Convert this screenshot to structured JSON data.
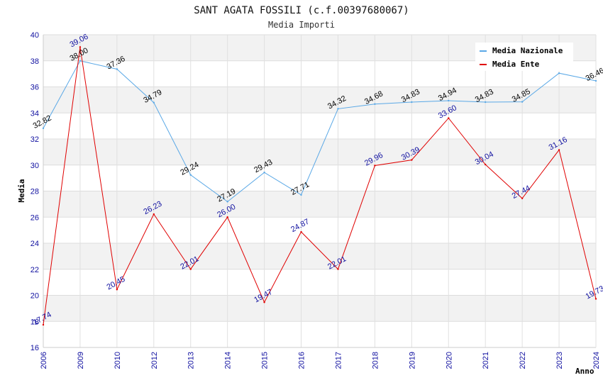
{
  "chart_data": {
    "type": "line",
    "title": "SANT AGATA FOSSILI (c.f.00397680067)",
    "subtitle": "Media Importi",
    "xlabel": "Anno",
    "ylabel": "Media",
    "ylim": [
      16,
      40
    ],
    "yticks": [
      "16",
      "18",
      "20",
      "22",
      "24",
      "26",
      "28",
      "30",
      "32",
      "34",
      "36",
      "38",
      "40"
    ],
    "categories": [
      "2006",
      "2009",
      "2010",
      "2012",
      "2013",
      "2014",
      "2015",
      "2016",
      "2017",
      "2018",
      "2019",
      "2020",
      "2021",
      "2022",
      "2023",
      "2024"
    ],
    "legend_position": "top-right",
    "series": [
      {
        "name": "Media Nazionale",
        "color": "#5aa8e6",
        "label_color": "#000000",
        "values": [
          32.82,
          38.0,
          37.36,
          34.79,
          29.24,
          27.19,
          29.43,
          27.71,
          34.32,
          34.68,
          34.83,
          34.94,
          34.83,
          34.85,
          37.05,
          36.46
        ],
        "labels": [
          "32.82",
          "38.00",
          "37.36",
          "34.79",
          "29.24",
          "27.19",
          "29.43",
          "27.71",
          "34.32",
          "34.68",
          "34.83",
          "34.94",
          "34.83",
          "34.85",
          "",
          "36.46"
        ]
      },
      {
        "name": "Media Ente",
        "color": "#e00000",
        "label_color": "#1010a0",
        "values": [
          17.74,
          39.06,
          20.45,
          26.23,
          22.01,
          26.0,
          19.47,
          24.87,
          22.01,
          29.96,
          30.39,
          33.6,
          30.04,
          27.44,
          31.16,
          19.73
        ],
        "labels": [
          "17.74",
          "39.06",
          "20.45",
          "26.23",
          "22.01",
          "26.00",
          "19.47",
          "24.87",
          "22.01",
          "29.96",
          "30.39",
          "33.60",
          "30.04",
          "27.44",
          "31.16",
          "19.73"
        ]
      }
    ]
  }
}
